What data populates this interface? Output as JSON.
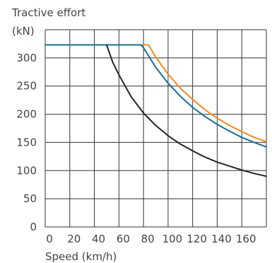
{
  "chart_data": {
    "type": "line",
    "ylabel_line1": "Tractive effort",
    "ylabel_line2": "(kN)",
    "xlabel": "Speed (km/h)",
    "xlim": [
      0,
      180
    ],
    "ylim": [
      0,
      350
    ],
    "xticks": [
      0,
      20,
      40,
      60,
      80,
      100,
      120,
      140,
      160
    ],
    "xtick_labels": [
      "0",
      "20",
      "40",
      "60",
      "80",
      "100",
      "120",
      "140",
      "160"
    ],
    "yticks": [
      0,
      50,
      100,
      150,
      200,
      250,
      300
    ],
    "ytick_labels": [
      "0",
      "50",
      "100",
      "150",
      "200",
      "250",
      "300"
    ],
    "x_grid_values": [
      0,
      20,
      40,
      60,
      80,
      100,
      120,
      140,
      160,
      180
    ],
    "y_grid_values": [
      0,
      50,
      100,
      150,
      200,
      250,
      300,
      350
    ],
    "grid": true,
    "series": [
      {
        "color": "#f28a24",
        "points": [
          [
            0,
            323
          ],
          [
            84,
            323
          ],
          [
            90,
            301
          ],
          [
            100,
            271
          ],
          [
            110,
            246
          ],
          [
            120,
            226
          ],
          [
            130,
            208
          ],
          [
            140,
            193
          ],
          [
            150,
            180
          ],
          [
            160,
            169
          ],
          [
            170,
            159
          ],
          [
            180,
            151
          ]
        ]
      },
      {
        "color": "#1a6e96",
        "points": [
          [
            0,
            323
          ],
          [
            78,
            323
          ],
          [
            80,
            318
          ],
          [
            90,
            283
          ],
          [
            100,
            255
          ],
          [
            110,
            232
          ],
          [
            120,
            212
          ],
          [
            130,
            196
          ],
          [
            140,
            182
          ],
          [
            150,
            170
          ],
          [
            160,
            159
          ],
          [
            170,
            150
          ],
          [
            180,
            142
          ]
        ]
      },
      {
        "color": "#22252e",
        "points": [
          [
            50,
            323
          ],
          [
            55,
            292
          ],
          [
            60,
            270
          ],
          [
            70,
            231
          ],
          [
            80,
            202
          ],
          [
            90,
            180
          ],
          [
            100,
            162
          ],
          [
            110,
            147
          ],
          [
            120,
            135
          ],
          [
            130,
            124
          ],
          [
            140,
            115
          ],
          [
            150,
            108
          ],
          [
            160,
            101
          ],
          [
            170,
            95
          ],
          [
            180,
            90
          ]
        ]
      }
    ]
  }
}
